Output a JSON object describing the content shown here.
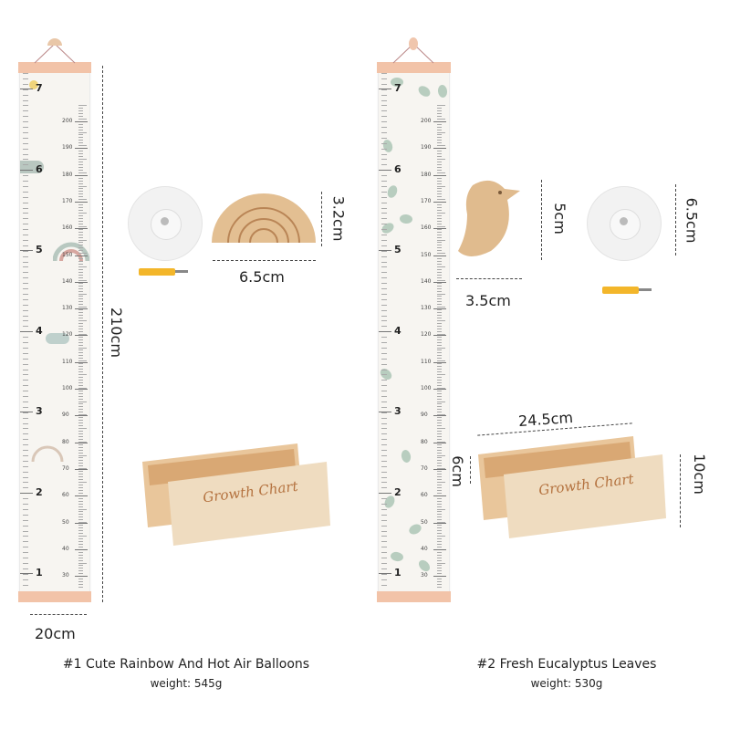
{
  "products": [
    {
      "caption": "#1 Cute Rainbow And Hot Air Balloons",
      "weight": "weight: 545g",
      "theme": "rainbow",
      "dims": {
        "length": "210cm",
        "width": "20cm",
        "hook_height": "3.2cm",
        "hook_width": "6.5cm"
      },
      "box_text": "Growth Chart"
    },
    {
      "caption": "#2 Fresh Eucalyptus Leaves",
      "weight": "weight: 530g",
      "theme": "eucalyptus",
      "dims": {
        "hook_height": "5cm",
        "hook_width": "3.5cm",
        "mount_diameter": "6.5cm",
        "box_length": "24.5cm",
        "box_inner_height": "6cm",
        "box_height": "10cm"
      },
      "box_text": "Growth Chart"
    }
  ],
  "ruler": {
    "feet": [
      "1",
      "2",
      "3",
      "4",
      "5",
      "6",
      "7"
    ],
    "cm": [
      "30",
      "40",
      "50",
      "60",
      "70",
      "80",
      "90",
      "100",
      "110",
      "120",
      "130",
      "140",
      "150",
      "160",
      "170",
      "180",
      "190",
      "200"
    ]
  },
  "colors": {
    "hanger": "#f2c3a8",
    "wood": "#e8c9a0",
    "leaf": "#9cbcaa",
    "engrave": "#b4723f"
  }
}
